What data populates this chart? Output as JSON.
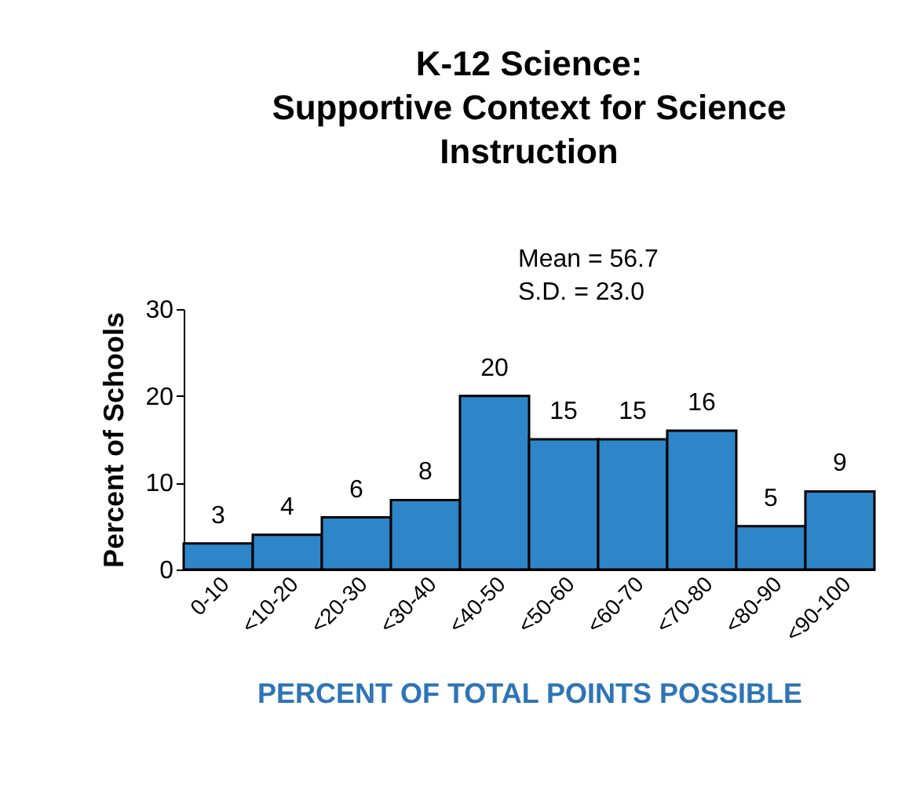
{
  "chart_data": {
    "type": "bar",
    "title": "K-12 Science:\nSupportive Context for Science\nInstruction",
    "categories": [
      "0-10",
      "<10-20",
      "<20-30",
      "<30-40",
      "<40-50",
      "<50-60",
      "<60-70",
      "<70-80",
      "<80-90",
      "<90-100"
    ],
    "values": [
      3,
      4,
      6,
      8,
      20,
      15,
      15,
      16,
      5,
      9
    ],
    "color": "#2e86c8",
    "ylim": [
      0,
      30
    ],
    "yticks": [
      0,
      10,
      20,
      30
    ],
    "grid": false,
    "data_labels": true,
    "xlabel": "PERCENT OF TOTAL POINTS POSSIBLE",
    "ylabel": "Percent of Schools",
    "annotations": [
      "Mean = 56.7",
      "S.D. = 23.0"
    ]
  }
}
